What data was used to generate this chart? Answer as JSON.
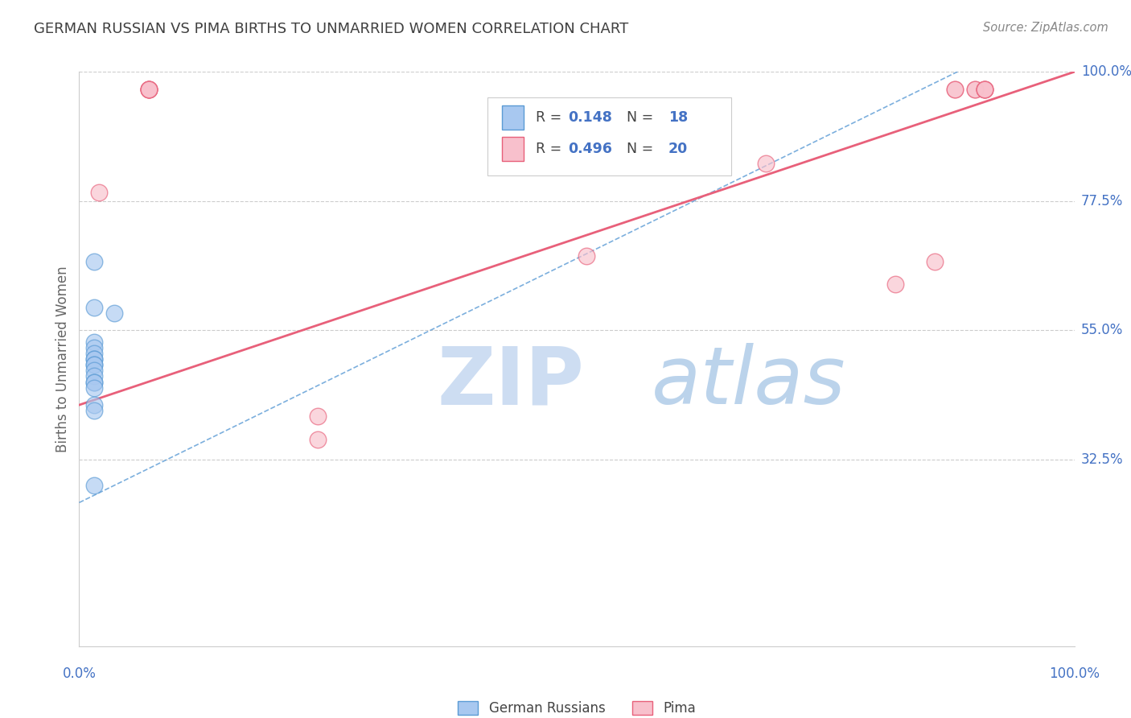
{
  "title": "GERMAN RUSSIAN VS PIMA BIRTHS TO UNMARRIED WOMEN CORRELATION CHART",
  "source": "Source: ZipAtlas.com",
  "ylabel": "Births to Unmarried Women",
  "xlim": [
    0.0,
    100.0
  ],
  "ylim": [
    0.0,
    100.0
  ],
  "watermark_zip": "ZIP",
  "watermark_atlas": "atlas",
  "legend_r_blue": "0.148",
  "legend_n_blue": "18",
  "legend_r_pink": "0.496",
  "legend_n_pink": "20",
  "blue_scatter_x": [
    1.5,
    1.5,
    1.5,
    1.5,
    1.5,
    1.5,
    1.5,
    1.5,
    1.5,
    1.5,
    1.5,
    1.5,
    1.5,
    1.5,
    1.5,
    1.5,
    1.5,
    3.5
  ],
  "blue_scatter_y": [
    67,
    59,
    53,
    52,
    51,
    50,
    50,
    49,
    49,
    48,
    47,
    46,
    46,
    45,
    42,
    41,
    28,
    58
  ],
  "pink_scatter_x": [
    7,
    7,
    7,
    7,
    7,
    24,
    24,
    51,
    69,
    82,
    86,
    88,
    88,
    90,
    90,
    91,
    91,
    91,
    91,
    2
  ],
  "pink_scatter_y": [
    97,
    97,
    97,
    97,
    97,
    40,
    36,
    68,
    84,
    63,
    67,
    97,
    97,
    97,
    97,
    97,
    97,
    97,
    97,
    79
  ],
  "blue_line_x": [
    0,
    100
  ],
  "blue_line_y": [
    25,
    110
  ],
  "pink_line_x": [
    0,
    100
  ],
  "pink_line_y": [
    42,
    100
  ],
  "ytick_positions": [
    32.5,
    55.0,
    77.5,
    100.0
  ],
  "ytick_labels": [
    "32.5%",
    "55.0%",
    "77.5%",
    "100.0%"
  ],
  "xtick_left": "0.0%",
  "xtick_right": "100.0%",
  "blue_fill_color": "#A8C8F0",
  "blue_edge_color": "#5B9BD5",
  "pink_fill_color": "#F8C0CC",
  "pink_edge_color": "#E8607A",
  "blue_line_color": "#5B9BD5",
  "pink_line_color": "#E8607A",
  "grid_color": "#CCCCCC",
  "bg_color": "#FFFFFF",
  "title_color": "#404040",
  "axis_val_color": "#4472C4",
  "source_color": "#888888"
}
